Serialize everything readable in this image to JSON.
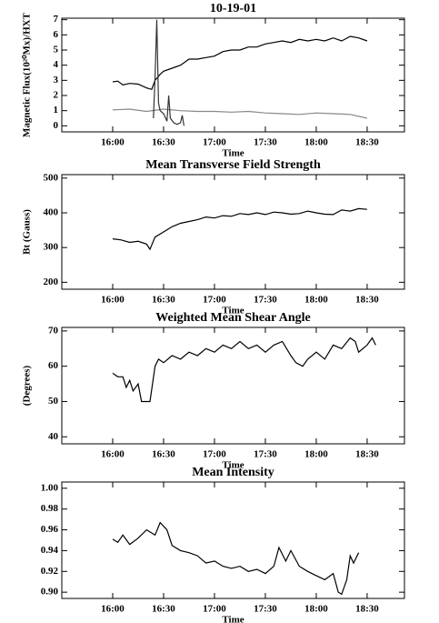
{
  "chart_data": [
    {
      "type": "line",
      "title": "10-19-01",
      "y_label": "Magnetic Flux(10²⁰Mx)/HXT",
      "x_label": "Time",
      "xlim": [
        930,
        1132
      ],
      "xticks": [
        {
          "value": 960,
          "label": "16:00"
        },
        {
          "value": 990,
          "label": "16:30"
        },
        {
          "value": 1020,
          "label": "17:00"
        },
        {
          "value": 1050,
          "label": "17:30"
        },
        {
          "value": 1080,
          "label": "18:00"
        },
        {
          "value": 1110,
          "label": "18:30"
        }
      ],
      "ylim": [
        -0.4,
        7.1
      ],
      "yticks": [
        0,
        1,
        2,
        3,
        4,
        5,
        6,
        7
      ],
      "series": [
        {
          "color": "#000000",
          "x": [
            960,
            963,
            966,
            970,
            975,
            980,
            983,
            985,
            988,
            990,
            995,
            1000,
            1005,
            1010,
            1015,
            1020,
            1025,
            1030,
            1035,
            1040,
            1045,
            1050,
            1055,
            1060,
            1065,
            1070,
            1075,
            1080,
            1085,
            1090,
            1095,
            1100,
            1105,
            1110
          ],
          "values": [
            2.9,
            2.95,
            2.7,
            2.8,
            2.75,
            2.5,
            2.4,
            3.0,
            3.4,
            3.6,
            3.8,
            4.0,
            4.4,
            4.4,
            4.5,
            4.6,
            4.9,
            5.0,
            5.0,
            5.2,
            5.2,
            5.4,
            5.5,
            5.6,
            5.5,
            5.7,
            5.6,
            5.7,
            5.6,
            5.8,
            5.6,
            5.9,
            5.8,
            5.6
          ]
        },
        {
          "color": "#888888",
          "x": [
            960,
            970,
            980,
            990,
            1000,
            1010,
            1020,
            1030,
            1040,
            1050,
            1060,
            1070,
            1080,
            1090,
            1100,
            1110
          ],
          "values": [
            1.05,
            1.1,
            0.95,
            1.1,
            1.0,
            0.95,
            0.95,
            0.9,
            0.95,
            0.85,
            0.8,
            0.75,
            0.85,
            0.8,
            0.75,
            0.5
          ]
        },
        {
          "color": "#333333",
          "x": [
            984,
            985,
            986,
            987,
            988,
            990,
            992,
            993,
            994,
            996,
            998,
            1000,
            1001,
            1002
          ],
          "values": [
            0.5,
            3.2,
            7.0,
            1.5,
            1.0,
            0.8,
            0.3,
            2.0,
            0.5,
            0.2,
            0.1,
            0.2,
            0.7,
            0.0
          ]
        }
      ]
    },
    {
      "type": "line",
      "title": "Mean Transverse Field Strength",
      "y_label": "Bt (Gauss)",
      "x_label": "Time",
      "xlim": [
        930,
        1132
      ],
      "xticks": [
        {
          "value": 960,
          "label": "16:00"
        },
        {
          "value": 990,
          "label": "16:30"
        },
        {
          "value": 1020,
          "label": "17:00"
        },
        {
          "value": 1050,
          "label": "17:30"
        },
        {
          "value": 1080,
          "label": "18:00"
        },
        {
          "value": 1110,
          "label": "18:30"
        }
      ],
      "ylim": [
        180,
        510
      ],
      "yticks": [
        200,
        300,
        400,
        500
      ],
      "series": [
        {
          "color": "#000000",
          "x": [
            960,
            965,
            970,
            975,
            980,
            982,
            985,
            990,
            995,
            1000,
            1005,
            1010,
            1015,
            1020,
            1025,
            1030,
            1035,
            1040,
            1045,
            1050,
            1055,
            1060,
            1065,
            1070,
            1075,
            1080,
            1085,
            1090,
            1095,
            1100,
            1105,
            1110
          ],
          "values": [
            325,
            322,
            315,
            318,
            310,
            295,
            330,
            345,
            360,
            370,
            375,
            380,
            388,
            385,
            392,
            390,
            398,
            395,
            400,
            395,
            402,
            400,
            396,
            398,
            405,
            400,
            396,
            395,
            408,
            405,
            412,
            410
          ]
        }
      ]
    },
    {
      "type": "line",
      "title": "Weighted Mean Shear Angle",
      "y_label": "(Degrees)",
      "x_label": "Time",
      "xlim": [
        930,
        1132
      ],
      "xticks": [
        {
          "value": 960,
          "label": "16:00"
        },
        {
          "value": 990,
          "label": "16:30"
        },
        {
          "value": 1020,
          "label": "17:00"
        },
        {
          "value": 1050,
          "label": "17:30"
        },
        {
          "value": 1080,
          "label": "18:00"
        },
        {
          "value": 1110,
          "label": "18:30"
        }
      ],
      "ylim": [
        38,
        71
      ],
      "yticks": [
        40,
        50,
        60,
        70
      ],
      "series": [
        {
          "color": "#000000",
          "x": [
            960,
            963,
            966,
            968,
            970,
            972,
            975,
            977,
            980,
            982,
            985,
            987,
            990,
            995,
            1000,
            1005,
            1010,
            1015,
            1020,
            1025,
            1030,
            1035,
            1040,
            1045,
            1050,
            1055,
            1060,
            1065,
            1068,
            1072,
            1075,
            1080,
            1085,
            1090,
            1095,
            1100,
            1103,
            1105,
            1110,
            1113,
            1115
          ],
          "values": [
            58,
            57,
            57,
            54,
            56,
            53,
            55,
            50,
            50,
            50,
            60,
            62,
            61,
            63,
            62,
            64,
            63,
            65,
            64,
            66,
            65,
            67,
            65,
            66,
            64,
            66,
            67,
            63,
            61,
            60,
            62,
            64,
            62,
            66,
            65,
            68,
            67,
            64,
            66,
            68,
            66
          ]
        }
      ]
    },
    {
      "type": "line",
      "title": "Mean Intensity",
      "x_label": "Time",
      "xlim": [
        930,
        1132
      ],
      "xticks": [
        {
          "value": 960,
          "label": "16:00"
        },
        {
          "value": 990,
          "label": "16:30"
        },
        {
          "value": 1020,
          "label": "17:00"
        },
        {
          "value": 1050,
          "label": "17:30"
        },
        {
          "value": 1080,
          "label": "18:00"
        },
        {
          "value": 1110,
          "label": "18:30"
        }
      ],
      "ylim": [
        0.894,
        1.006
      ],
      "yticks": [
        {
          "value": 0.9,
          "label": "0.90"
        },
        {
          "value": 0.92,
          "label": "0.92"
        },
        {
          "value": 0.94,
          "label": "0.94"
        },
        {
          "value": 0.96,
          "label": "0.96"
        },
        {
          "value": 0.98,
          "label": "0.98"
        },
        {
          "value": 1.0,
          "label": "1.00"
        }
      ],
      "series": [
        {
          "color": "#000000",
          "x": [
            960,
            963,
            966,
            970,
            975,
            980,
            985,
            988,
            992,
            995,
            1000,
            1005,
            1010,
            1015,
            1020,
            1025,
            1030,
            1035,
            1040,
            1045,
            1050,
            1055,
            1058,
            1062,
            1065,
            1070,
            1075,
            1080,
            1085,
            1090,
            1093,
            1095,
            1098,
            1100,
            1102,
            1105
          ],
          "values": [
            0.951,
            0.948,
            0.955,
            0.946,
            0.952,
            0.96,
            0.955,
            0.967,
            0.96,
            0.945,
            0.94,
            0.938,
            0.935,
            0.928,
            0.93,
            0.925,
            0.923,
            0.925,
            0.92,
            0.922,
            0.918,
            0.925,
            0.943,
            0.93,
            0.94,
            0.925,
            0.92,
            0.916,
            0.912,
            0.918,
            0.9,
            0.898,
            0.912,
            0.935,
            0.928,
            0.938
          ]
        }
      ]
    }
  ]
}
